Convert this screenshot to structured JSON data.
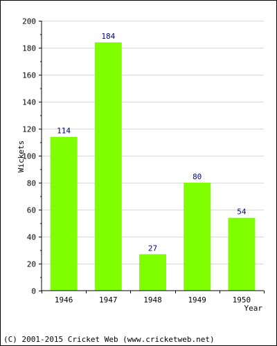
{
  "chart_data": {
    "type": "bar",
    "title": "",
    "categories": [
      "1946",
      "1947",
      "1948",
      "1949",
      "1950"
    ],
    "values": [
      114,
      184,
      27,
      80,
      54
    ],
    "data_labels": [
      "114",
      "184",
      "27",
      "80",
      "54"
    ],
    "xlabel": "Year",
    "ylabel": "Wickets",
    "ylim": [
      0,
      200
    ],
    "yticks": [
      0,
      20,
      40,
      60,
      80,
      100,
      120,
      140,
      160,
      180,
      200
    ],
    "grid": true,
    "legend": "none",
    "bar_color": "#80ff00",
    "label_color": "#000080",
    "grid_color": "#d8d8d8"
  },
  "footer": {
    "copyright": "(C) 2001-2015 Cricket Web (www.cricketweb.net)"
  }
}
